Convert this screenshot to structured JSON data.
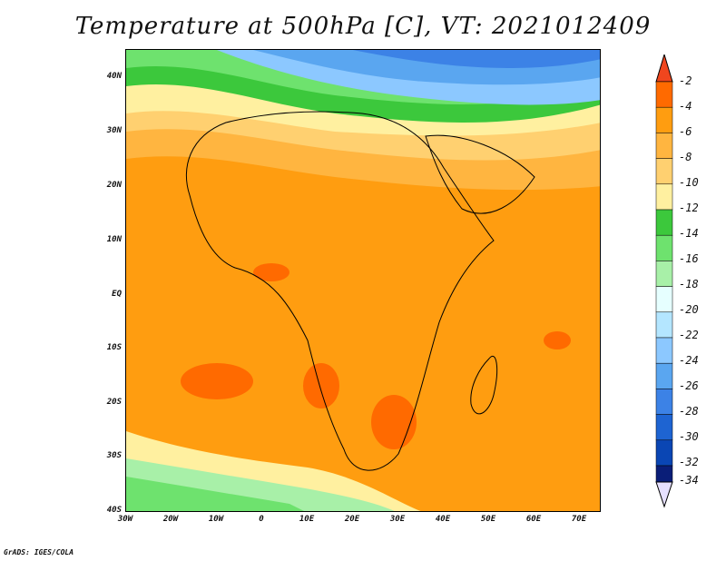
{
  "title": "Temperature at 500hPa [C], VT: 2021012409",
  "credit": "GrADS: IGES/COLA",
  "axes": {
    "lat_labels": [
      "40N",
      "30N",
      "20N",
      "10N",
      "EQ",
      "10S",
      "20S",
      "30S",
      "40S"
    ],
    "lon_labels": [
      "30W",
      "20W",
      "10W",
      "0",
      "10E",
      "20E",
      "30E",
      "40E",
      "50E",
      "60E",
      "70E"
    ]
  },
  "colorbar": {
    "labels": [
      "-2",
      "-4",
      "-6",
      "-8",
      "-10",
      "-12",
      "-14",
      "-16",
      "-18",
      "-20",
      "-22",
      "-24",
      "-26",
      "-28",
      "-30",
      "-32",
      "-34"
    ],
    "colors": [
      "#f0461e",
      "#ff6a00",
      "#ff9d10",
      "#ffb540",
      "#ffd070",
      "#fff0a0",
      "#3cc83c",
      "#6ee26e",
      "#a8f0a8",
      "#e6ffff",
      "#b4e6ff",
      "#8cc8ff",
      "#5aa6f0",
      "#3c82e6",
      "#1e64d2",
      "#0a46b4",
      "#0a1e78"
    ]
  },
  "colors": {
    "land_border": "#000000",
    "warm_orange": "#ff9d10",
    "light_orange": "#ffb540",
    "yellow": "#fff0a0",
    "green": "#6ee26e",
    "blue": "#5aa6f0"
  }
}
